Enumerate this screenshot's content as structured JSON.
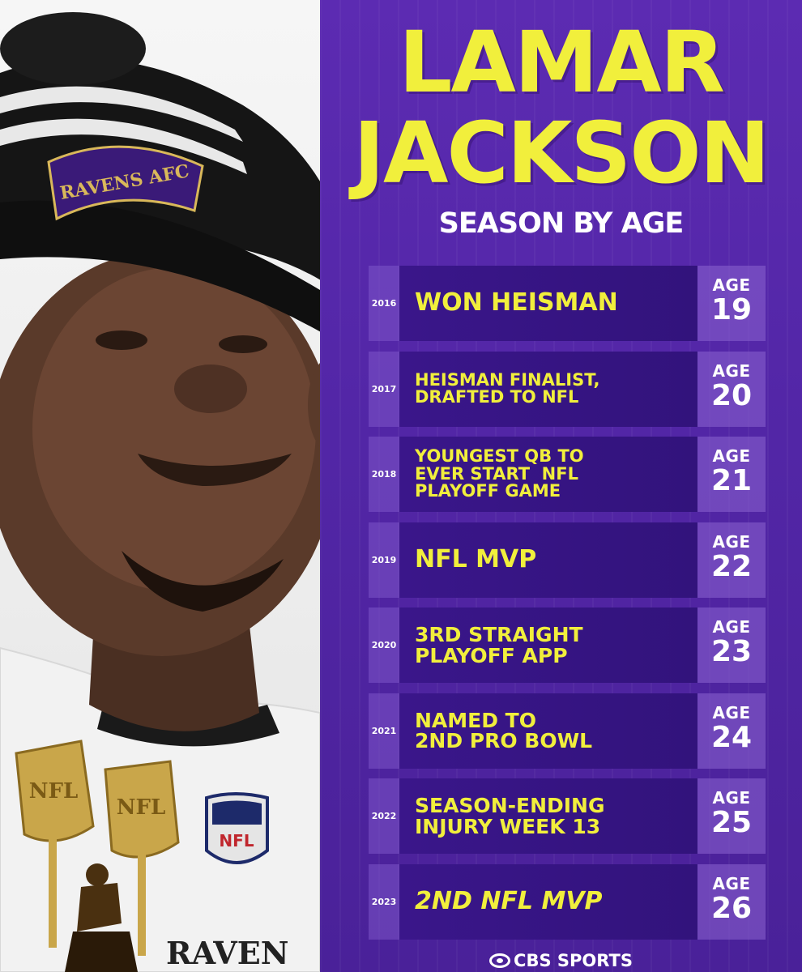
{
  "header": {
    "name_line1": "LAMAR",
    "name_line2": "JACKSON",
    "subtitle": "SEASON BY AGE"
  },
  "photo": {
    "logo_text": "NFL",
    "beanie_patch": "RAVENS AFC",
    "jersey_text": "RAVEN"
  },
  "rows": [
    {
      "year": "2016",
      "lines": [
        "WON HEISMAN"
      ],
      "age_label": "AGE",
      "age": "19"
    },
    {
      "year": "2017",
      "lines": [
        "HEISMAN FINALIST,",
        "DRAFTED TO NFL"
      ],
      "age_label": "AGE",
      "age": "20"
    },
    {
      "year": "2018",
      "lines": [
        "YOUNGEST QB TO",
        "EVER START  NFL",
        "PLAYOFF GAME"
      ],
      "age_label": "AGE",
      "age": "21"
    },
    {
      "year": "2019",
      "lines": [
        "NFL MVP"
      ],
      "age_label": "AGE",
      "age": "22"
    },
    {
      "year": "2020",
      "lines": [
        "3RD STRAIGHT",
        "PLAYOFF APP"
      ],
      "age_label": "AGE",
      "age": "23"
    },
    {
      "year": "2021",
      "lines": [
        "NAMED TO",
        "2ND PRO BOWL"
      ],
      "age_label": "AGE",
      "age": "24"
    },
    {
      "year": "2022",
      "lines": [
        "SEASON-ENDING",
        "INJURY WEEK 13"
      ],
      "age_label": "AGE",
      "age": "25"
    },
    {
      "year": "2023",
      "lines": [
        "2ND NFL MVP"
      ],
      "age_label": "AGE",
      "age": "26"
    }
  ],
  "footer": {
    "brand": "CBS SPORTS",
    "brand_icon": "cbs-eye-icon"
  },
  "colors": {
    "panel": "#5226a6",
    "accent_yellow": "#f1ef3c",
    "event_bg": "#3a168a"
  }
}
